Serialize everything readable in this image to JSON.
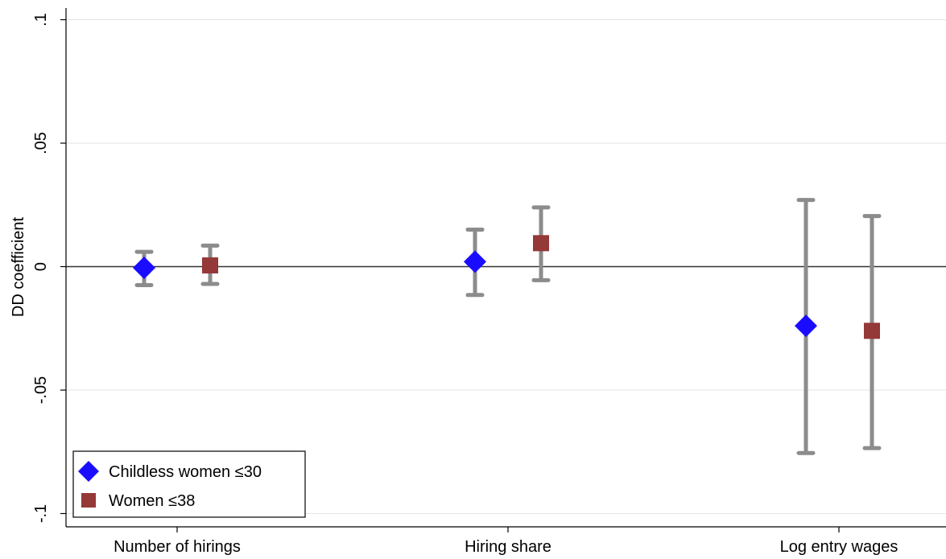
{
  "chart_data": {
    "type": "scatter",
    "title": "",
    "xlabel": "",
    "ylabel": "DD coefficient",
    "ylim": [
      -0.1,
      0.1
    ],
    "yticks": [
      {
        "value": -0.1,
        "label": "-.1"
      },
      {
        "value": -0.05,
        "label": "-.05"
      },
      {
        "value": 0,
        "label": "0"
      },
      {
        "value": 0.05,
        "label": ".05"
      },
      {
        "value": 0.1,
        "label": ".1"
      }
    ],
    "categories": [
      "Number of hirings",
      "Hiring share",
      "Log entry wages"
    ],
    "grid": true,
    "reference_line": 0,
    "legend_position": "bottom-left",
    "series": [
      {
        "name": "Childless women ≤30",
        "marker": "diamond",
        "color": "#1a0dff",
        "points": [
          {
            "category": "Number of hirings",
            "estimate": -0.0005,
            "ci_low": -0.0075,
            "ci_high": 0.006
          },
          {
            "category": "Hiring share",
            "estimate": 0.002,
            "ci_low": -0.0115,
            "ci_high": 0.015
          },
          {
            "category": "Log entry wages",
            "estimate": -0.024,
            "ci_low": -0.0755,
            "ci_high": 0.027
          }
        ]
      },
      {
        "name": "Women ≤38",
        "marker": "square",
        "color": "#943838",
        "points": [
          {
            "category": "Number of hirings",
            "estimate": 0.0005,
            "ci_low": -0.007,
            "ci_high": 0.0085
          },
          {
            "category": "Hiring share",
            "estimate": 0.0095,
            "ci_low": -0.0055,
            "ci_high": 0.024
          },
          {
            "category": "Log entry wages",
            "estimate": -0.026,
            "ci_low": -0.0735,
            "ci_high": 0.0205
          }
        ]
      }
    ],
    "ci_color": "#8c8c8c"
  }
}
